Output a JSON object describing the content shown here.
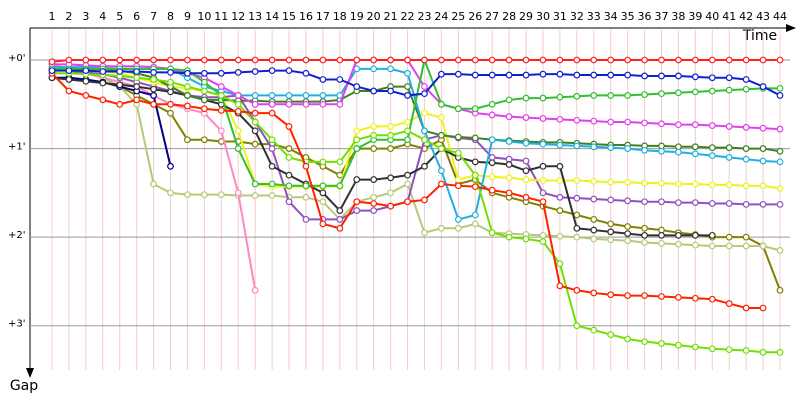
{
  "chart_data": {
    "type": "line",
    "x_label": "Time",
    "y_label": "Gap",
    "categories": [
      "1",
      "2",
      "3",
      "4",
      "5",
      "6",
      "7",
      "8",
      "9",
      "10",
      "11",
      "12",
      "13",
      "14",
      "15",
      "16",
      "17",
      "18",
      "19",
      "20",
      "21",
      "22",
      "23",
      "24",
      "25",
      "26",
      "27",
      "28",
      "29",
      "30",
      "31",
      "32",
      "33",
      "34",
      "35",
      "36",
      "37",
      "38",
      "39",
      "40",
      "41",
      "42",
      "43",
      "44"
    ],
    "ylim": [
      -0.35,
      3.5
    ],
    "yticks": [
      {
        "value": 0,
        "label": "+0'"
      },
      {
        "value": 1,
        "label": "+1'"
      },
      {
        "value": 2,
        "label": "+2'"
      },
      {
        "value": 3,
        "label": "+3'"
      }
    ],
    "grid": true,
    "series": [
      {
        "color": "#808000",
        "values": [
          0.1,
          0.12,
          0.15,
          0.2,
          0.3,
          0.4,
          0.5,
          0.6,
          0.9,
          0.9,
          0.92,
          0.92,
          0.95,
          0.95,
          1.0,
          1.1,
          1.2,
          1.3,
          1.0,
          1.0,
          1.0,
          0.95,
          1.0,
          0.9,
          1.4,
          1.35,
          1.5,
          1.55,
          1.6,
          1.65,
          1.7,
          1.75,
          1.8,
          1.85,
          1.88,
          1.9,
          1.92,
          1.95,
          1.97,
          2.0,
          2.0,
          2.0,
          2.1,
          2.6
        ]
      },
      {
        "color": "#b8c878",
        "values": [
          0.1,
          0.1,
          0.15,
          0.2,
          0.3,
          0.5,
          1.4,
          1.5,
          1.52,
          1.52,
          1.52,
          1.53,
          1.53,
          1.53,
          1.55,
          1.55,
          1.6,
          1.8,
          1.6,
          1.55,
          1.5,
          1.4,
          1.95,
          1.9,
          1.9,
          1.85,
          1.95,
          1.96,
          1.97,
          1.98,
          1.99,
          2.0,
          2.02,
          2.03,
          2.04,
          2.06,
          2.07,
          2.08,
          2.09,
          2.1,
          2.1,
          2.1,
          2.1,
          2.15
        ]
      },
      {
        "color": "#ff88c0",
        "values": [
          0.05,
          0.1,
          0.15,
          0.2,
          0.25,
          0.3,
          0.4,
          0.5,
          0.55,
          0.6,
          0.8,
          1.5,
          2.6,
          null,
          null,
          null,
          null,
          null,
          null,
          null,
          null,
          null,
          null,
          null,
          null,
          null,
          null,
          null,
          null,
          null,
          null,
          null,
          null,
          null,
          null,
          null,
          null,
          null,
          null,
          null,
          null,
          null,
          null,
          null
        ]
      },
      {
        "color": "#000080",
        "values": [
          0.2,
          0.2,
          0.22,
          0.25,
          0.3,
          0.35,
          0.4,
          1.2,
          null,
          null,
          null,
          null,
          null,
          null,
          null,
          null,
          null,
          null,
          null,
          null,
          null,
          null,
          null,
          null,
          null,
          null,
          null,
          null,
          null,
          null,
          null,
          null,
          null,
          null,
          null,
          null,
          null,
          null,
          null,
          null,
          null,
          null,
          null,
          null
        ]
      },
      {
        "color": "#9050c0",
        "values": [
          0.1,
          0.12,
          0.14,
          0.16,
          0.2,
          0.25,
          0.3,
          0.35,
          0.4,
          0.42,
          0.42,
          0.4,
          0.7,
          1.0,
          1.6,
          1.8,
          1.8,
          1.8,
          1.7,
          1.7,
          1.65,
          1.6,
          0.9,
          0.85,
          0.88,
          0.9,
          1.1,
          1.12,
          1.14,
          1.5,
          1.55,
          1.56,
          1.57,
          1.58,
          1.59,
          1.6,
          1.6,
          1.61,
          1.61,
          1.62,
          1.62,
          1.63,
          1.63,
          1.63
        ]
      },
      {
        "color": "#f0f020",
        "values": [
          0.1,
          0.1,
          0.12,
          0.13,
          0.15,
          0.2,
          0.25,
          0.3,
          0.32,
          0.35,
          0.4,
          0.8,
          1.4,
          1.43,
          1.43,
          1.43,
          1.43,
          1.43,
          0.8,
          0.75,
          0.75,
          0.7,
          0.6,
          0.65,
          1.35,
          1.3,
          1.32,
          1.33,
          1.35,
          1.36,
          1.36,
          1.36,
          1.37,
          1.38,
          1.38,
          1.39,
          1.39,
          1.4,
          1.4,
          1.41,
          1.41,
          1.42,
          1.42,
          1.45
        ]
      },
      {
        "color": "#303030",
        "values": [
          0.2,
          0.22,
          0.24,
          0.26,
          0.28,
          0.3,
          0.33,
          0.36,
          0.4,
          0.45,
          0.5,
          0.6,
          0.8,
          1.2,
          1.3,
          1.4,
          1.5,
          1.7,
          1.35,
          1.35,
          1.33,
          1.3,
          1.2,
          1.0,
          1.1,
          1.15,
          1.16,
          1.18,
          1.25,
          1.2,
          1.2,
          1.9,
          1.92,
          1.94,
          1.96,
          1.98,
          1.98,
          1.98,
          1.98,
          1.98,
          null,
          null,
          null,
          null
        ]
      },
      {
        "color": "#408020",
        "values": [
          0.1,
          0.1,
          0.1,
          0.1,
          0.12,
          0.15,
          0.2,
          0.3,
          0.4,
          0.45,
          0.45,
          0.46,
          0.46,
          0.47,
          0.47,
          0.47,
          0.47,
          0.45,
          0.35,
          0.35,
          0.3,
          0.3,
          0.8,
          0.85,
          0.87,
          0.88,
          0.9,
          0.91,
          0.92,
          0.93,
          0.93,
          0.94,
          0.95,
          0.96,
          0.96,
          0.97,
          0.97,
          0.98,
          0.98,
          0.99,
          0.99,
          1.0,
          1.0,
          1.03
        ]
      },
      {
        "color": "#20b0e0",
        "values": [
          0.08,
          0.08,
          0.08,
          0.09,
          0.1,
          0.1,
          0.1,
          0.1,
          0.2,
          0.3,
          0.35,
          0.4,
          0.4,
          0.4,
          0.4,
          0.4,
          0.4,
          0.4,
          0.1,
          0.1,
          0.1,
          0.15,
          0.8,
          1.25,
          1.8,
          1.75,
          0.9,
          0.92,
          0.94,
          0.95,
          0.96,
          0.97,
          0.98,
          0.99,
          1.0,
          1.02,
          1.03,
          1.04,
          1.06,
          1.08,
          1.1,
          1.12,
          1.14,
          1.15
        ]
      },
      {
        "color": "#e040f0",
        "values": [
          0.05,
          0.05,
          0.06,
          0.07,
          0.07,
          0.07,
          0.08,
          0.1,
          0.15,
          0.2,
          0.3,
          0.4,
          0.5,
          0.5,
          0.5,
          0.5,
          0.5,
          0.5,
          0.0,
          0.0,
          0.0,
          0.0,
          0.3,
          0.5,
          0.55,
          0.6,
          0.62,
          0.64,
          0.65,
          0.66,
          0.67,
          0.68,
          0.69,
          0.7,
          0.7,
          0.71,
          0.72,
          0.73,
          0.73,
          0.74,
          0.75,
          0.76,
          0.77,
          0.78
        ]
      },
      {
        "color": "#30c030",
        "values": [
          0.1,
          0.1,
          0.1,
          0.1,
          0.1,
          0.1,
          0.1,
          0.1,
          0.12,
          0.25,
          0.4,
          1.0,
          1.4,
          1.4,
          1.42,
          1.42,
          1.42,
          1.42,
          1.0,
          0.9,
          0.9,
          0.9,
          0.0,
          0.5,
          0.55,
          0.55,
          0.5,
          0.45,
          0.43,
          0.43,
          0.42,
          0.41,
          0.4,
          0.4,
          0.4,
          0.39,
          0.38,
          0.37,
          0.36,
          0.35,
          0.34,
          0.33,
          0.32,
          0.32
        ]
      },
      {
        "color": "#70e000",
        "values": [
          0.15,
          0.15,
          0.16,
          0.17,
          0.18,
          0.2,
          0.22,
          0.25,
          0.3,
          0.35,
          0.4,
          0.5,
          0.7,
          0.9,
          1.1,
          1.15,
          1.15,
          1.15,
          0.9,
          0.85,
          0.85,
          0.8,
          0.9,
          1.0,
          1.05,
          1.3,
          1.95,
          2.0,
          2.02,
          2.05,
          2.3,
          3.0,
          3.05,
          3.1,
          3.15,
          3.18,
          3.2,
          3.22,
          3.24,
          3.26,
          3.27,
          3.28,
          3.3,
          3.3
        ]
      },
      {
        "color": "#ff2000",
        "values": [
          0.15,
          0.35,
          0.4,
          0.45,
          0.5,
          0.45,
          0.5,
          0.5,
          0.52,
          0.55,
          0.57,
          0.58,
          0.6,
          0.6,
          0.75,
          1.2,
          1.85,
          1.9,
          1.6,
          1.62,
          1.65,
          1.6,
          1.58,
          1.4,
          1.42,
          1.43,
          1.47,
          1.5,
          1.55,
          1.6,
          2.55,
          2.6,
          2.63,
          2.65,
          2.66,
          2.66,
          2.67,
          2.68,
          2.69,
          2.7,
          2.75,
          2.8,
          2.8,
          null
        ]
      },
      {
        "color": "#1020d0",
        "values": [
          0.12,
          0.12,
          0.12,
          0.13,
          0.13,
          0.13,
          0.14,
          0.14,
          0.15,
          0.15,
          0.15,
          0.14,
          0.13,
          0.12,
          0.12,
          0.15,
          0.22,
          0.22,
          0.3,
          0.35,
          0.35,
          0.4,
          0.38,
          0.16,
          0.16,
          0.17,
          0.17,
          0.17,
          0.17,
          0.16,
          0.16,
          0.17,
          0.17,
          0.17,
          0.17,
          0.18,
          0.18,
          0.18,
          0.19,
          0.2,
          0.2,
          0.22,
          0.3,
          0.4
        ]
      },
      {
        "color": "#ff2020",
        "values": [
          0.02,
          0,
          0,
          0,
          0,
          0,
          0,
          0,
          0,
          0,
          0,
          0,
          0,
          0,
          0,
          0,
          0,
          0,
          0,
          0,
          0,
          0,
          0,
          0,
          0,
          0,
          0,
          0,
          0,
          0,
          0,
          0,
          0,
          0,
          0,
          0,
          0,
          0,
          0,
          0,
          0,
          0,
          0,
          0
        ]
      }
    ]
  }
}
